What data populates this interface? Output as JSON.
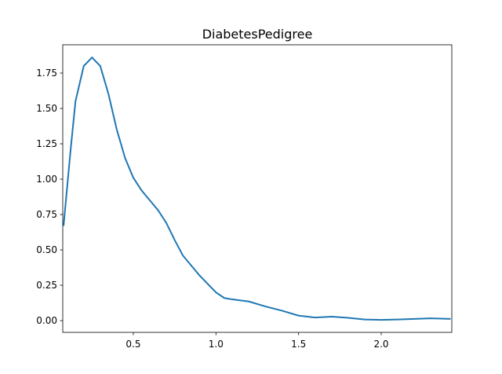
{
  "chart_data": {
    "type": "line",
    "title": "DiabetesPedigree",
    "x": [
      0.078,
      0.12,
      0.15,
      0.2,
      0.25,
      0.3,
      0.35,
      0.4,
      0.45,
      0.5,
      0.55,
      0.6,
      0.65,
      0.7,
      0.75,
      0.8,
      0.9,
      1.0,
      1.05,
      1.1,
      1.2,
      1.3,
      1.4,
      1.5,
      1.6,
      1.7,
      1.8,
      1.9,
      2.0,
      2.1,
      2.2,
      2.3,
      2.42
    ],
    "series": [
      {
        "name": "DiabetesPedigree",
        "color": "#1f77b4",
        "values": [
          0.67,
          1.2,
          1.55,
          1.8,
          1.86,
          1.8,
          1.6,
          1.35,
          1.15,
          1.01,
          0.92,
          0.85,
          0.78,
          0.69,
          0.57,
          0.46,
          0.32,
          0.2,
          0.16,
          0.15,
          0.135,
          0.1,
          0.07,
          0.035,
          0.022,
          0.028,
          0.02,
          0.008,
          0.005,
          0.008,
          0.012,
          0.016,
          0.012
        ]
      }
    ],
    "xlim": [
      0.073,
      2.427
    ],
    "ylim": [
      -0.083,
      1.95
    ],
    "xticks": [
      0.5,
      {
        "value": 1.0,
        "label": "1.0"
      },
      1.5,
      {
        "value": 2.0,
        "label": "2.0"
      }
    ],
    "yticks": [
      {
        "value": 0,
        "label": "0.00"
      },
      {
        "value": 0.25,
        "label": "0.25"
      },
      {
        "value": 0.5,
        "label": "0.50"
      },
      {
        "value": 0.75,
        "label": "0.75"
      },
      {
        "value": 1.0,
        "label": "1.00"
      },
      {
        "value": 1.25,
        "label": "1.25"
      },
      {
        "value": 1.5,
        "label": "1.50"
      },
      {
        "value": 1.75,
        "label": "1.75"
      }
    ],
    "grid": false
  }
}
